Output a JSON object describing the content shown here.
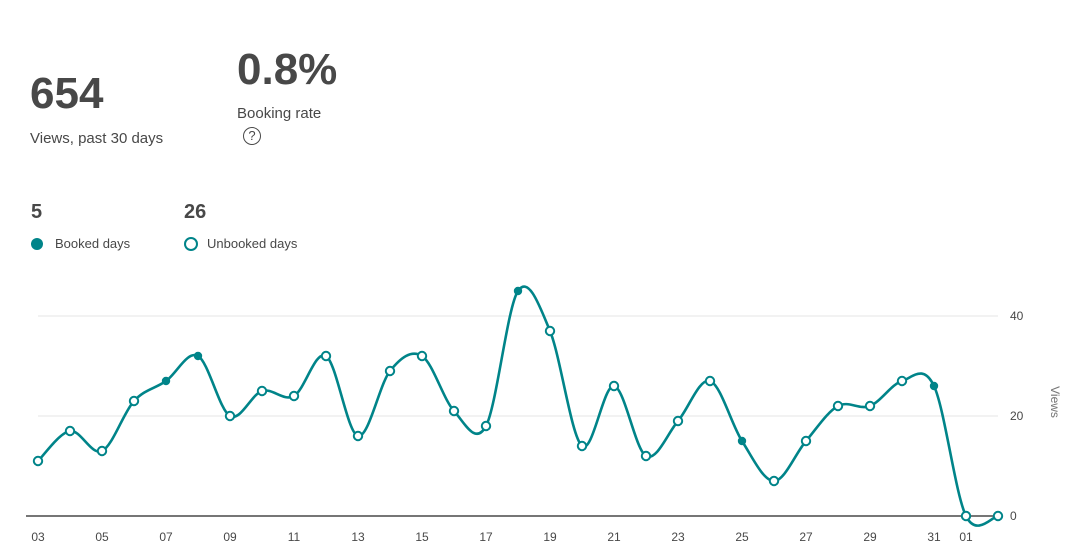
{
  "summary": {
    "views_value": "654",
    "views_label": "Views, past 30 days",
    "booking_rate_value": "0.8%",
    "booking_rate_label": "Booking rate",
    "help_glyph": "?"
  },
  "legend": {
    "booked_count": "5",
    "booked_label": "Booked days",
    "unbooked_count": "26",
    "unbooked_label": "Unbooked days"
  },
  "colors": {
    "accent": "#008489",
    "grid": "#e4e4e4",
    "baseline": "#484848"
  },
  "chart_data": {
    "type": "line",
    "xlabel": "",
    "ylabel": "Views",
    "ylim": [
      0,
      45
    ],
    "yticks": [
      0,
      20,
      40
    ],
    "grid": true,
    "x": [
      "03",
      "04",
      "05",
      "06",
      "07",
      "08",
      "09",
      "10",
      "11",
      "12",
      "13",
      "14",
      "15",
      "16",
      "17",
      "18",
      "19",
      "20",
      "21",
      "22",
      "23",
      "24",
      "25",
      "26",
      "27",
      "28",
      "29",
      "30",
      "31",
      "01",
      "02"
    ],
    "xtick_labels": [
      "03",
      "05",
      "07",
      "09",
      "11",
      "13",
      "15",
      "17",
      "19",
      "21",
      "23",
      "25",
      "27",
      "29",
      "31",
      "01"
    ],
    "series": [
      {
        "values": [
          11,
          17,
          13,
          23,
          27,
          32,
          20,
          25,
          24,
          32,
          16,
          29,
          32,
          21,
          18,
          45,
          37,
          14,
          26,
          12,
          19,
          27,
          15,
          7,
          15,
          22,
          22,
          27,
          26,
          0,
          0
        ],
        "booked": [
          false,
          false,
          false,
          false,
          true,
          true,
          false,
          false,
          false,
          false,
          false,
          false,
          false,
          false,
          false,
          true,
          false,
          false,
          false,
          false,
          false,
          false,
          true,
          false,
          false,
          false,
          false,
          false,
          true,
          false,
          false
        ]
      }
    ]
  }
}
